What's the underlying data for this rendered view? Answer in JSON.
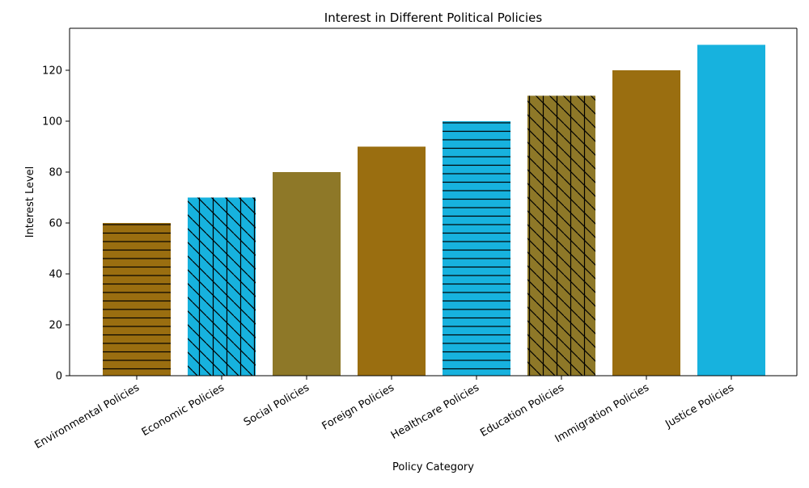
{
  "chart_data": {
    "type": "bar",
    "title": "Interest in Different Political Policies",
    "xlabel": "Policy Category",
    "ylabel": "Interest Level",
    "categories": [
      "Environmental Policies",
      "Economic Policies",
      "Social Policies",
      "Foreign Policies",
      "Healthcare Policies",
      "Education Policies",
      "Immigration Policies",
      "Justice Policies"
    ],
    "values": [
      60,
      70,
      80,
      90,
      100,
      110,
      120,
      130
    ],
    "colors": [
      "#9a6e10",
      "#17b2de",
      "#8e7828",
      "#9a6e10",
      "#17b2de",
      "#8e7828",
      "#9a6e10",
      "#17b2de"
    ],
    "hatches": [
      "horizontal",
      "diagonal-cross",
      "none",
      "none",
      "horizontal",
      "diagonal-cross",
      "none",
      "none"
    ],
    "ylim": [
      0,
      136.5
    ],
    "yticks": [
      0,
      20,
      40,
      60,
      80,
      100,
      120
    ],
    "grid": false,
    "legend": "none"
  }
}
